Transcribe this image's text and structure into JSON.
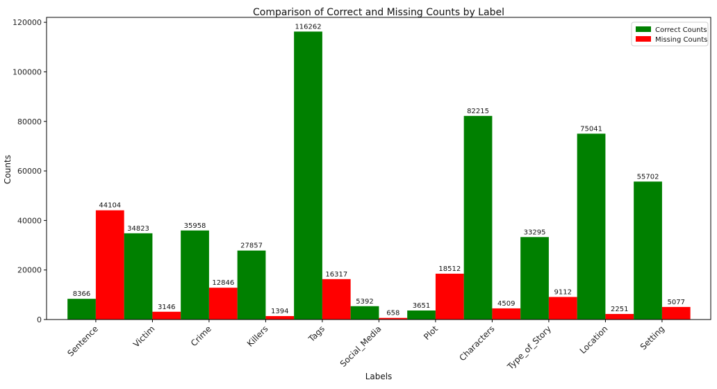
{
  "chart_data": {
    "type": "bar",
    "title": "Comparison of Correct and Missing Counts by Label",
    "xlabel": "Labels",
    "ylabel": "Counts",
    "ylim": [
      0,
      122000
    ],
    "yticks": [
      0,
      20000,
      40000,
      60000,
      80000,
      100000,
      120000
    ],
    "categories": [
      "Sentence",
      "Victim",
      "Crime",
      "Killers",
      "Tags",
      "Social_Media",
      "Plot",
      "Characters",
      "Type_of_Story",
      "Location",
      "Setting"
    ],
    "series": [
      {
        "name": "Correct Counts",
        "color": "#008000",
        "values": [
          8366,
          34823,
          35958,
          27857,
          116262,
          5392,
          3651,
          82215,
          33295,
          75041,
          55702
        ]
      },
      {
        "name": "Missing Counts",
        "color": "#ff0000",
        "values": [
          44104,
          3146,
          12846,
          1394,
          16317,
          658,
          18512,
          4509,
          9112,
          2251,
          5077
        ]
      }
    ],
    "legend_position": "top-right",
    "grid": false
  }
}
